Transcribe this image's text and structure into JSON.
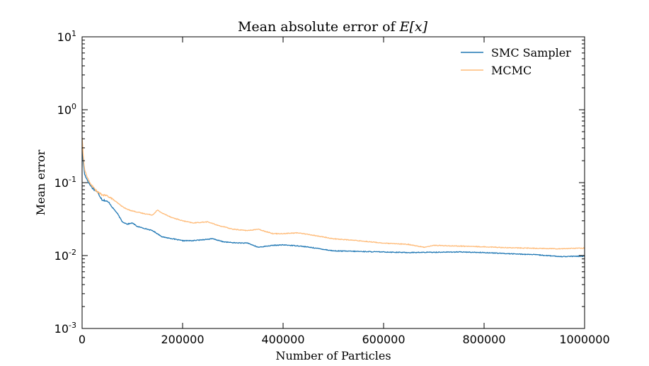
{
  "chart_data": {
    "type": "line",
    "title_prefix": "Mean absolute error of ",
    "title_math": "E[x]",
    "xlabel": "Number of Particles",
    "ylabel": "Mean error",
    "xlim": [
      0,
      1000000
    ],
    "ylim": [
      0.001,
      10
    ],
    "yscale": "log",
    "grid": false,
    "legend_position": "top-right",
    "x_ticks": [
      {
        "value": 0,
        "label": "0"
      },
      {
        "value": 200000,
        "label": "200000"
      },
      {
        "value": 400000,
        "label": "400000"
      },
      {
        "value": 600000,
        "label": "600000"
      },
      {
        "value": 800000,
        "label": "800000"
      },
      {
        "value": 1000000,
        "label": "1000000"
      }
    ],
    "y_ticks": [
      {
        "value": 0.001,
        "base": "10",
        "exp": "-3"
      },
      {
        "value": 0.01,
        "base": "10",
        "exp": "-2"
      },
      {
        "value": 0.1,
        "base": "10",
        "exp": "-1"
      },
      {
        "value": 1,
        "base": "10",
        "exp": "0"
      },
      {
        "value": 10,
        "base": "10",
        "exp": "1"
      }
    ],
    "series": [
      {
        "name": "SMC Sampler",
        "color": "#1f77b4",
        "x": [
          0,
          2000,
          5000,
          10000,
          15000,
          20000,
          30000,
          40000,
          45000,
          50000,
          55000,
          60000,
          70000,
          80000,
          90000,
          100000,
          110000,
          120000,
          140000,
          160000,
          180000,
          200000,
          220000,
          240000,
          260000,
          280000,
          300000,
          330000,
          350000,
          380000,
          400000,
          430000,
          460000,
          500000,
          550000,
          600000,
          650000,
          700000,
          750000,
          800000,
          850000,
          900000,
          950000,
          1000000
        ],
        "values": [
          0.3,
          0.2,
          0.13,
          0.11,
          0.095,
          0.085,
          0.075,
          0.058,
          0.057,
          0.055,
          0.052,
          0.046,
          0.038,
          0.029,
          0.027,
          0.028,
          0.025,
          0.024,
          0.022,
          0.018,
          0.017,
          0.016,
          0.016,
          0.0165,
          0.017,
          0.0155,
          0.015,
          0.0148,
          0.013,
          0.0138,
          0.014,
          0.0136,
          0.0128,
          0.0116,
          0.0114,
          0.0112,
          0.011,
          0.0111,
          0.0112,
          0.011,
          0.0106,
          0.0103,
          0.0097,
          0.0098
        ]
      },
      {
        "name": "MCMC",
        "color": "#ffbb78",
        "x": [
          0,
          2000,
          5000,
          10000,
          15000,
          20000,
          30000,
          40000,
          50000,
          60000,
          70000,
          80000,
          90000,
          100000,
          120000,
          140000,
          150000,
          160000,
          180000,
          200000,
          220000,
          250000,
          270000,
          300000,
          330000,
          350000,
          380000,
          400000,
          430000,
          460000,
          500000,
          550000,
          600000,
          650000,
          680000,
          700000,
          750000,
          800000,
          850000,
          900000,
          950000,
          1000000
        ],
        "values": [
          0.42,
          0.25,
          0.15,
          0.12,
          0.1,
          0.09,
          0.075,
          0.068,
          0.066,
          0.06,
          0.053,
          0.047,
          0.043,
          0.041,
          0.038,
          0.036,
          0.042,
          0.038,
          0.033,
          0.03,
          0.028,
          0.029,
          0.026,
          0.023,
          0.022,
          0.023,
          0.02,
          0.02,
          0.0205,
          0.019,
          0.017,
          0.016,
          0.0148,
          0.0142,
          0.013,
          0.0138,
          0.0135,
          0.0132,
          0.0128,
          0.0126,
          0.0124,
          0.0127
        ]
      }
    ]
  }
}
